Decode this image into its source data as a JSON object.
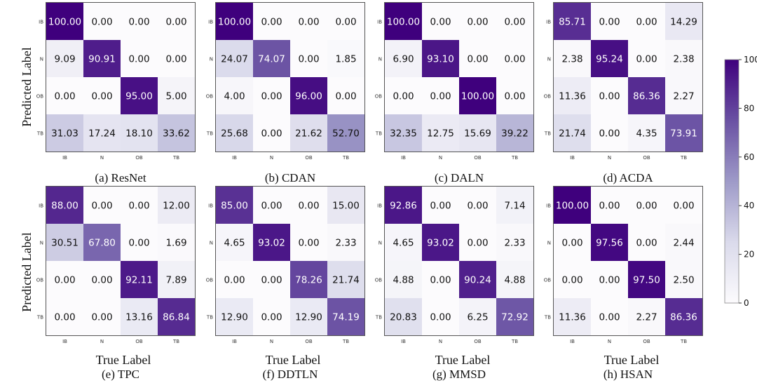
{
  "figure": {
    "y_axis_title": "Predicted Label",
    "x_axis_title": "True Label"
  },
  "colorbar": {
    "min": 0,
    "max": 100,
    "ticks": [
      "0",
      "20",
      "40",
      "60",
      "80",
      "100"
    ],
    "colors": {
      "low": "#fcfbfd",
      "mid": "#9e9ac8",
      "high": "#3f007d"
    }
  },
  "chart_data": [
    {
      "type": "heatmap",
      "caption": "(a) ResNet",
      "x_categories": [
        "IB",
        "N",
        "OB",
        "TB"
      ],
      "y_categories": [
        "IB",
        "N",
        "OB",
        "TB"
      ],
      "values": [
        [
          100.0,
          0.0,
          0.0,
          0.0
        ],
        [
          9.09,
          90.91,
          0.0,
          0.0
        ],
        [
          0.0,
          0.0,
          95.0,
          5.0
        ],
        [
          31.03,
          17.24,
          18.1,
          33.62
        ]
      ],
      "labels": [
        [
          "100.00",
          "0.00",
          "0.00",
          "0.00"
        ],
        [
          "9.09",
          "90.91",
          "0.00",
          "0.00"
        ],
        [
          "0.00",
          "0.00",
          "95.00",
          "5.00"
        ],
        [
          "31.03",
          "17.24",
          "18.10",
          "33.62"
        ]
      ]
    },
    {
      "type": "heatmap",
      "caption": "(b) CDAN",
      "x_categories": [
        "IB",
        "N",
        "OB",
        "TB"
      ],
      "y_categories": [
        "IB",
        "N",
        "OB",
        "TB"
      ],
      "values": [
        [
          100.0,
          0.0,
          0.0,
          0.0
        ],
        [
          24.07,
          74.07,
          0.0,
          1.85
        ],
        [
          4.0,
          0.0,
          96.0,
          0.0
        ],
        [
          25.68,
          0.0,
          21.62,
          52.7
        ]
      ],
      "labels": [
        [
          "100.00",
          "0.00",
          "0.00",
          "0.00"
        ],
        [
          "24.07",
          "74.07",
          "0.00",
          "1.85"
        ],
        [
          "4.00",
          "0.00",
          "96.00",
          "0.00"
        ],
        [
          "25.68",
          "0.00",
          "21.62",
          "52.70"
        ]
      ]
    },
    {
      "type": "heatmap",
      "caption": "(c) DALN",
      "x_categories": [
        "IB",
        "N",
        "OB",
        "TB"
      ],
      "y_categories": [
        "IB",
        "N",
        "OB",
        "TB"
      ],
      "values": [
        [
          100.0,
          0.0,
          0.0,
          0.0
        ],
        [
          6.9,
          93.1,
          0.0,
          0.0
        ],
        [
          0.0,
          0.0,
          100.0,
          0.0
        ],
        [
          32.35,
          12.75,
          15.69,
          39.22
        ]
      ],
      "labels": [
        [
          "100.00",
          "0.00",
          "0.00",
          "0.00"
        ],
        [
          "6.90",
          "93.10",
          "0.00",
          "0.00"
        ],
        [
          "0.00",
          "0.00",
          "100.00",
          "0.00"
        ],
        [
          "32.35",
          "12.75",
          "15.69",
          "39.22"
        ]
      ]
    },
    {
      "type": "heatmap",
      "caption": "(d) ACDA",
      "x_categories": [
        "IB",
        "N",
        "OB",
        "TB"
      ],
      "y_categories": [
        "IB",
        "N",
        "OB",
        "TB"
      ],
      "values": [
        [
          85.71,
          0.0,
          0.0,
          14.29
        ],
        [
          2.38,
          95.24,
          0.0,
          2.38
        ],
        [
          11.36,
          0.0,
          86.36,
          2.27
        ],
        [
          21.74,
          0.0,
          4.35,
          73.91
        ]
      ],
      "labels": [
        [
          "85.71",
          "0.00",
          "0.00",
          "14.29"
        ],
        [
          "2.38",
          "95.24",
          "0.00",
          "2.38"
        ],
        [
          "11.36",
          "0.00",
          "86.36",
          "2.27"
        ],
        [
          "21.74",
          "0.00",
          "4.35",
          "73.91"
        ]
      ]
    },
    {
      "type": "heatmap",
      "caption": "(e) TPC",
      "x_categories": [
        "IB",
        "N",
        "OB",
        "TB"
      ],
      "y_categories": [
        "IB",
        "N",
        "OB",
        "TB"
      ],
      "values": [
        [
          88.0,
          0.0,
          0.0,
          12.0
        ],
        [
          30.51,
          67.8,
          0.0,
          1.69
        ],
        [
          0.0,
          0.0,
          92.11,
          7.89
        ],
        [
          0.0,
          0.0,
          13.16,
          86.84
        ]
      ],
      "labels": [
        [
          "88.00",
          "0.00",
          "0.00",
          "12.00"
        ],
        [
          "30.51",
          "67.80",
          "0.00",
          "1.69"
        ],
        [
          "0.00",
          "0.00",
          "92.11",
          "7.89"
        ],
        [
          "0.00",
          "0.00",
          "13.16",
          "86.84"
        ]
      ]
    },
    {
      "type": "heatmap",
      "caption": "(f) DDTLN",
      "x_categories": [
        "IB",
        "N",
        "OB",
        "TB"
      ],
      "y_categories": [
        "IB",
        "N",
        "OB",
        "TB"
      ],
      "values": [
        [
          85.0,
          0.0,
          0.0,
          15.0
        ],
        [
          4.65,
          93.02,
          0.0,
          2.33
        ],
        [
          0.0,
          0.0,
          78.26,
          21.74
        ],
        [
          12.9,
          0.0,
          12.9,
          74.19
        ]
      ],
      "labels": [
        [
          "85.00",
          "0.00",
          "0.00",
          "15.00"
        ],
        [
          "4.65",
          "93.02",
          "0.00",
          "2.33"
        ],
        [
          "0.00",
          "0.00",
          "78.26",
          "21.74"
        ],
        [
          "12.90",
          "0.00",
          "12.90",
          "74.19"
        ]
      ]
    },
    {
      "type": "heatmap",
      "caption": "(g) MMSD",
      "x_categories": [
        "IB",
        "N",
        "OB",
        "TB"
      ],
      "y_categories": [
        "IB",
        "N",
        "OB",
        "TB"
      ],
      "values": [
        [
          92.86,
          0.0,
          0.0,
          7.14
        ],
        [
          4.65,
          93.02,
          0.0,
          2.33
        ],
        [
          4.88,
          0.0,
          90.24,
          4.88
        ],
        [
          20.83,
          0.0,
          6.25,
          72.92
        ]
      ],
      "labels": [
        [
          "92.86",
          "0.00",
          "0.00",
          "7.14"
        ],
        [
          "4.65",
          "93.02",
          "0.00",
          "2.33"
        ],
        [
          "4.88",
          "0.00",
          "90.24",
          "4.88"
        ],
        [
          "20.83",
          "0.00",
          "6.25",
          "72.92"
        ]
      ]
    },
    {
      "type": "heatmap",
      "caption": "(h) HSAN",
      "x_categories": [
        "IB",
        "N",
        "OB",
        "TB"
      ],
      "y_categories": [
        "IB",
        "N",
        "OB",
        "TB"
      ],
      "values": [
        [
          100.0,
          0.0,
          0.0,
          0.0
        ],
        [
          0.0,
          97.56,
          0.0,
          2.44
        ],
        [
          0.0,
          0.0,
          97.5,
          2.5
        ],
        [
          11.36,
          0.0,
          2.27,
          86.36
        ]
      ],
      "labels": [
        [
          "100.00",
          "0.00",
          "0.00",
          "0.00"
        ],
        [
          "0.00",
          "97.56",
          "0.00",
          "2.44"
        ],
        [
          "0.00",
          "0.00",
          "97.50",
          "2.50"
        ],
        [
          "11.36",
          "0.00",
          "2.27",
          "86.36"
        ]
      ]
    }
  ]
}
